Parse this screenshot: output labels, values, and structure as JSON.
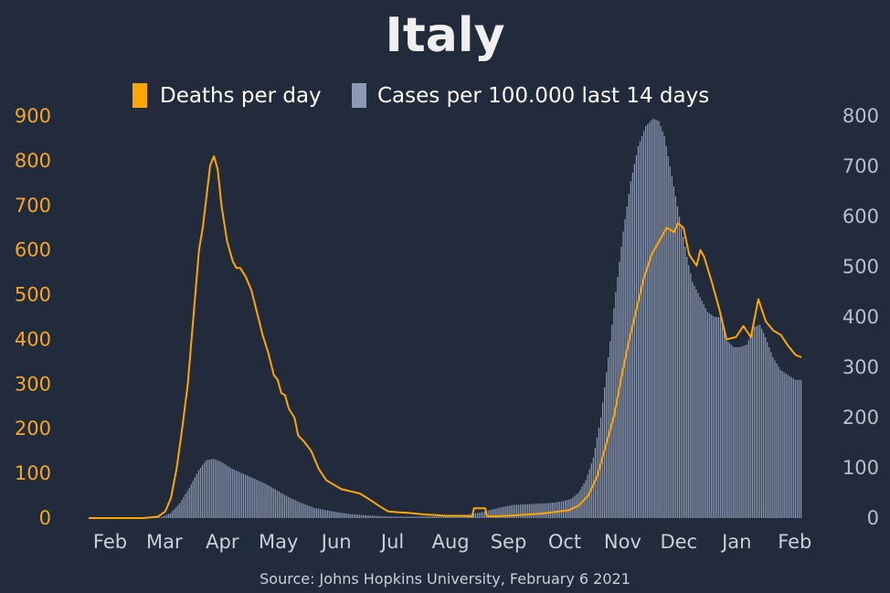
{
  "chart_data": {
    "type": "bar+line",
    "title": "Italy",
    "source": "Source: Johns Hopkins University, February 6 2021",
    "x_range": [
      "2020-01-22",
      "2021-02-06"
    ],
    "x_ticks": [
      {
        "label": "Feb",
        "date": "2020-02-01"
      },
      {
        "label": "Mar",
        "date": "2020-03-01"
      },
      {
        "label": "Apr",
        "date": "2020-04-01"
      },
      {
        "label": "May",
        "date": "2020-05-01"
      },
      {
        "label": "Jun",
        "date": "2020-06-01"
      },
      {
        "label": "Jul",
        "date": "2020-07-01"
      },
      {
        "label": "Aug",
        "date": "2020-08-01"
      },
      {
        "label": "Sep",
        "date": "2020-09-01"
      },
      {
        "label": "Oct",
        "date": "2020-10-01"
      },
      {
        "label": "Nov",
        "date": "2020-11-01"
      },
      {
        "label": "Dec",
        "date": "2020-12-01"
      },
      {
        "label": "Jan",
        "date": "2021-01-01"
      },
      {
        "label": "Feb",
        "date": "2021-02-01"
      }
    ],
    "y_left": {
      "ylim": [
        0,
        900
      ],
      "ticks": [
        0,
        100,
        200,
        300,
        400,
        500,
        600,
        700,
        800,
        900
      ],
      "color": "#f5a623"
    },
    "y_right": {
      "ylim": [
        0,
        800
      ],
      "ticks": [
        0,
        100,
        200,
        300,
        400,
        500,
        600,
        700,
        800
      ],
      "color": "#b7bfcc"
    },
    "series": [
      {
        "name": "Deaths per day",
        "type": "line",
        "axis": "left",
        "color": "#ffa500",
        "points": [
          [
            "2020-01-22",
            0
          ],
          [
            "2020-02-20",
            0
          ],
          [
            "2020-02-28",
            3
          ],
          [
            "2020-03-03",
            15
          ],
          [
            "2020-03-06",
            45
          ],
          [
            "2020-03-09",
            110
          ],
          [
            "2020-03-12",
            200
          ],
          [
            "2020-03-15",
            300
          ],
          [
            "2020-03-17",
            400
          ],
          [
            "2020-03-19",
            500
          ],
          [
            "2020-03-21",
            600
          ],
          [
            "2020-03-23",
            650
          ],
          [
            "2020-03-25",
            720
          ],
          [
            "2020-03-27",
            790
          ],
          [
            "2020-03-29",
            810
          ],
          [
            "2020-03-31",
            780
          ],
          [
            "2020-04-02",
            700
          ],
          [
            "2020-04-05",
            620
          ],
          [
            "2020-04-08",
            575
          ],
          [
            "2020-04-10",
            560
          ],
          [
            "2020-04-12",
            560
          ],
          [
            "2020-04-15",
            540
          ],
          [
            "2020-04-18",
            510
          ],
          [
            "2020-04-21",
            460
          ],
          [
            "2020-04-24",
            410
          ],
          [
            "2020-04-27",
            370
          ],
          [
            "2020-04-30",
            320
          ],
          [
            "2020-05-02",
            310
          ],
          [
            "2020-05-04",
            280
          ],
          [
            "2020-05-06",
            275
          ],
          [
            "2020-05-08",
            245
          ],
          [
            "2020-05-11",
            225
          ],
          [
            "2020-05-13",
            185
          ],
          [
            "2020-05-16",
            172
          ],
          [
            "2020-05-20",
            150
          ],
          [
            "2020-05-24",
            110
          ],
          [
            "2020-05-28",
            85
          ],
          [
            "2020-06-01",
            75
          ],
          [
            "2020-06-05",
            65
          ],
          [
            "2020-06-10",
            60
          ],
          [
            "2020-06-15",
            55
          ],
          [
            "2020-06-20",
            42
          ],
          [
            "2020-06-25",
            28
          ],
          [
            "2020-06-30",
            15
          ],
          [
            "2020-07-05",
            13
          ],
          [
            "2020-07-10",
            12
          ],
          [
            "2020-07-15",
            10
          ],
          [
            "2020-07-20",
            8
          ],
          [
            "2020-07-25",
            7
          ],
          [
            "2020-07-31",
            5
          ],
          [
            "2020-08-05",
            5
          ],
          [
            "2020-08-10",
            5
          ],
          [
            "2020-08-14",
            3
          ],
          [
            "2020-08-15",
            22
          ],
          [
            "2020-08-21",
            22
          ],
          [
            "2020-08-22",
            4
          ],
          [
            "2020-08-28",
            4
          ],
          [
            "2020-09-05",
            6
          ],
          [
            "2020-09-12",
            8
          ],
          [
            "2020-09-20",
            10
          ],
          [
            "2020-09-28",
            14
          ],
          [
            "2020-10-05",
            18
          ],
          [
            "2020-10-10",
            28
          ],
          [
            "2020-10-15",
            50
          ],
          [
            "2020-10-20",
            95
          ],
          [
            "2020-10-25",
            170
          ],
          [
            "2020-10-29",
            230
          ],
          [
            "2020-11-02",
            320
          ],
          [
            "2020-11-06",
            400
          ],
          [
            "2020-11-10",
            470
          ],
          [
            "2020-11-14",
            540
          ],
          [
            "2020-11-18",
            590
          ],
          [
            "2020-11-22",
            620
          ],
          [
            "2020-11-26",
            650
          ],
          [
            "2020-11-30",
            640
          ],
          [
            "2020-12-02",
            660
          ],
          [
            "2020-12-05",
            650
          ],
          [
            "2020-12-08",
            590
          ],
          [
            "2020-12-12",
            565
          ],
          [
            "2020-12-14",
            600
          ],
          [
            "2020-12-16",
            585
          ],
          [
            "2020-12-20",
            530
          ],
          [
            "2020-12-24",
            470
          ],
          [
            "2020-12-28",
            400
          ],
          [
            "2021-01-02",
            405
          ],
          [
            "2021-01-06",
            430
          ],
          [
            "2021-01-10",
            405
          ],
          [
            "2021-01-14",
            490
          ],
          [
            "2021-01-18",
            440
          ],
          [
            "2021-01-22",
            420
          ],
          [
            "2021-01-26",
            410
          ],
          [
            "2021-01-30",
            385
          ],
          [
            "2021-02-03",
            365
          ],
          [
            "2021-02-06",
            360
          ]
        ]
      },
      {
        "name": "Cases per 100.000 last 14 days",
        "type": "bar",
        "axis": "right",
        "color": "#8c9ab3",
        "points": [
          [
            "2020-01-22",
            0
          ],
          [
            "2020-02-25",
            0
          ],
          [
            "2020-03-01",
            2
          ],
          [
            "2020-03-06",
            10
          ],
          [
            "2020-03-11",
            30
          ],
          [
            "2020-03-16",
            60
          ],
          [
            "2020-03-21",
            95
          ],
          [
            "2020-03-25",
            115
          ],
          [
            "2020-03-29",
            118
          ],
          [
            "2020-04-02",
            112
          ],
          [
            "2020-04-08",
            98
          ],
          [
            "2020-04-14",
            88
          ],
          [
            "2020-04-20",
            78
          ],
          [
            "2020-04-26",
            68
          ],
          [
            "2020-05-02",
            55
          ],
          [
            "2020-05-08",
            42
          ],
          [
            "2020-05-15",
            30
          ],
          [
            "2020-05-22",
            20
          ],
          [
            "2020-06-01",
            13
          ],
          [
            "2020-06-10",
            8
          ],
          [
            "2020-06-20",
            5
          ],
          [
            "2020-07-01",
            3
          ],
          [
            "2020-07-15",
            3
          ],
          [
            "2020-08-01",
            4
          ],
          [
            "2020-08-10",
            6
          ],
          [
            "2020-08-20",
            12
          ],
          [
            "2020-08-28",
            20
          ],
          [
            "2020-09-05",
            26
          ],
          [
            "2020-09-15",
            28
          ],
          [
            "2020-09-25",
            30
          ],
          [
            "2020-10-01",
            33
          ],
          [
            "2020-10-06",
            38
          ],
          [
            "2020-10-10",
            50
          ],
          [
            "2020-10-14",
            75
          ],
          [
            "2020-10-18",
            120
          ],
          [
            "2020-10-22",
            200
          ],
          [
            "2020-10-26",
            320
          ],
          [
            "2020-10-30",
            450
          ],
          [
            "2020-11-03",
            570
          ],
          [
            "2020-11-07",
            670
          ],
          [
            "2020-11-11",
            740
          ],
          [
            "2020-11-15",
            780
          ],
          [
            "2020-11-19",
            795
          ],
          [
            "2020-11-22",
            790
          ],
          [
            "2020-11-25",
            760
          ],
          [
            "2020-11-28",
            700
          ],
          [
            "2020-12-01",
            640
          ],
          [
            "2020-12-04",
            580
          ],
          [
            "2020-12-07",
            520
          ],
          [
            "2020-12-10",
            470
          ],
          [
            "2020-12-14",
            440
          ],
          [
            "2020-12-18",
            410
          ],
          [
            "2020-12-22",
            400
          ],
          [
            "2020-12-25",
            400
          ],
          [
            "2020-12-28",
            355
          ],
          [
            "2021-01-01",
            340
          ],
          [
            "2021-01-04",
            340
          ],
          [
            "2021-01-08",
            345
          ],
          [
            "2021-01-12",
            380
          ],
          [
            "2021-01-15",
            385
          ],
          [
            "2021-01-18",
            360
          ],
          [
            "2021-01-22",
            320
          ],
          [
            "2021-01-26",
            295
          ],
          [
            "2021-01-30",
            285
          ],
          [
            "2021-02-03",
            275
          ],
          [
            "2021-02-06",
            275
          ]
        ]
      }
    ],
    "legend": {
      "placement": "top-center",
      "entries": [
        "Deaths per day",
        "Cases per 100.000 last 14 days"
      ]
    },
    "grid": false
  }
}
